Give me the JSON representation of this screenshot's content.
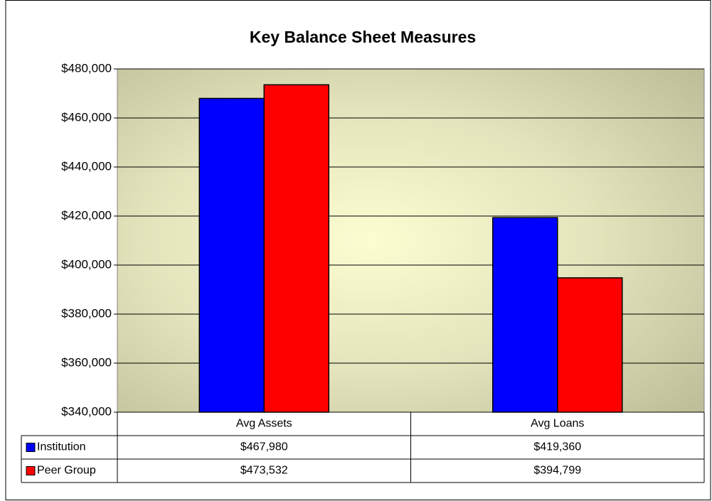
{
  "chart_data": {
    "type": "bar",
    "title": "Key Balance Sheet Measures",
    "categories": [
      "Avg Assets",
      "Avg Loans"
    ],
    "series": [
      {
        "name": "Institution",
        "color": "#0000ff",
        "values": [
          467980,
          419360
        ],
        "value_labels": [
          "$467,980",
          "$419,360"
        ]
      },
      {
        "name": "Peer Group",
        "color": "#ff0000",
        "values": [
          473532,
          394799
        ],
        "value_labels": [
          "$473,532",
          "$394,799"
        ]
      }
    ],
    "ylim": [
      340000,
      480000
    ],
    "yticks": [
      {
        "value": 340000,
        "label": "$340,000"
      },
      {
        "value": 360000,
        "label": "$360,000"
      },
      {
        "value": 380000,
        "label": "$380,000"
      },
      {
        "value": 400000,
        "label": "$400,000"
      },
      {
        "value": 420000,
        "label": "$420,000"
      },
      {
        "value": 440000,
        "label": "$440,000"
      },
      {
        "value": 460000,
        "label": "$460,000"
      },
      {
        "value": 480000,
        "label": "$480,000"
      }
    ],
    "grid": true
  }
}
